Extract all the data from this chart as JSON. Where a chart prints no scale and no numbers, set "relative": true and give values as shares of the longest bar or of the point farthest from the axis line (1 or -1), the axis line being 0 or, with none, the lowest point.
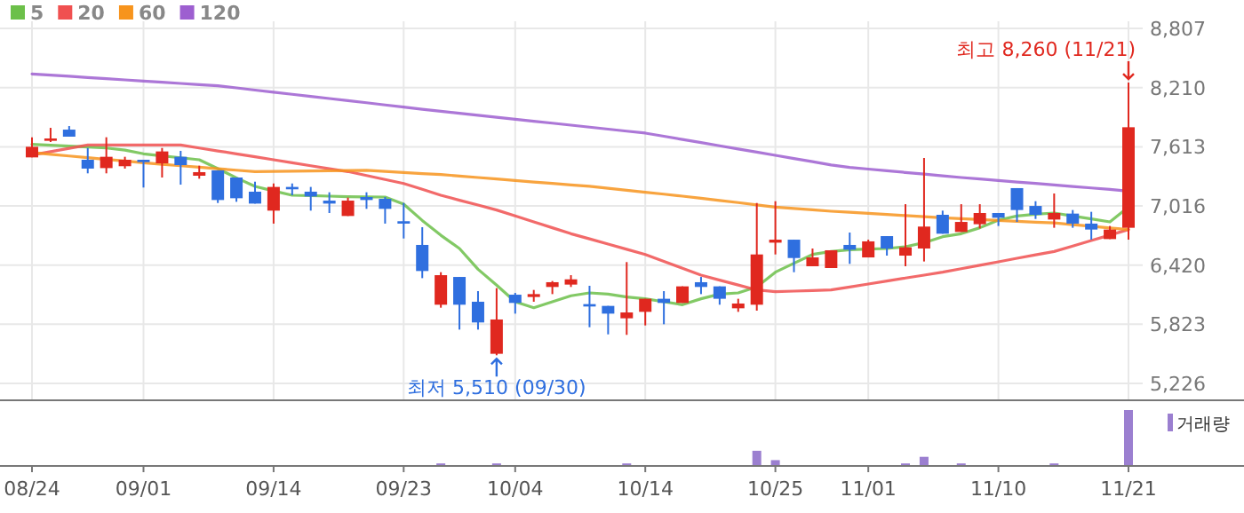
{
  "chart_data": [
    {
      "type": "candlestick",
      "categories": [
        "08/24",
        null,
        null,
        null,
        null,
        null,
        "09/01",
        null,
        null,
        null,
        null,
        null,
        null,
        "09/14",
        null,
        null,
        null,
        null,
        null,
        null,
        "09/23",
        null,
        null,
        null,
        null,
        null,
        "10/04",
        null,
        null,
        null,
        null,
        null,
        null,
        "10/14",
        null,
        null,
        null,
        null,
        null,
        null,
        "10/25",
        null,
        null,
        null,
        null,
        "11/01",
        null,
        null,
        null,
        null,
        null,
        null,
        "11/10",
        null,
        null,
        null,
        null,
        null,
        null,
        "11/21"
      ],
      "ohlc": [
        [
          7506,
          7709,
          7506,
          7613
        ],
        [
          7673,
          7804,
          7661,
          7697
        ],
        [
          7786,
          7822,
          7715,
          7715
        ],
        [
          7482,
          7601,
          7345,
          7393
        ],
        [
          7398,
          7709,
          7345,
          7512
        ],
        [
          7417,
          7512,
          7393,
          7482
        ],
        [
          7482,
          7482,
          7202,
          7458
        ],
        [
          7446,
          7601,
          7303,
          7566
        ],
        [
          7512,
          7572,
          7231,
          7428
        ],
        [
          7321,
          7422,
          7291,
          7357
        ],
        [
          7375,
          7375,
          7046,
          7076
        ],
        [
          7303,
          7303,
          7058,
          7094
        ],
        [
          7160,
          7261,
          7040,
          7040
        ],
        [
          6969,
          7243,
          6838,
          7208
        ],
        [
          7208,
          7243,
          7124,
          7184
        ],
        [
          7160,
          7208,
          6969,
          7112
        ],
        [
          7070,
          7154,
          6945,
          7040
        ],
        [
          6915,
          7100,
          6915,
          7070
        ],
        [
          7106,
          7154,
          6987,
          7076
        ],
        [
          7088,
          7106,
          6838,
          6987
        ],
        [
          6862,
          7046,
          6688,
          6838
        ],
        [
          6623,
          6802,
          6288,
          6360
        ],
        [
          6020,
          6348,
          5990,
          6318
        ],
        [
          6300,
          6300,
          5769,
          6020
        ],
        [
          6050,
          6157,
          5769,
          5841
        ],
        [
          5525,
          6187,
          5510,
          5871
        ],
        [
          6121,
          6139,
          5930,
          6038
        ],
        [
          6098,
          6169,
          6050,
          6127
        ],
        [
          6199,
          6259,
          6127,
          6247
        ],
        [
          6223,
          6318,
          6199,
          6276
        ],
        [
          6026,
          6211,
          5793,
          6002
        ],
        [
          6008,
          6008,
          5721,
          5930
        ],
        [
          5883,
          6450,
          5716,
          5942
        ],
        [
          5948,
          6080,
          5811,
          6080
        ],
        [
          6080,
          6157,
          5823,
          6038
        ],
        [
          6038,
          6205,
          6038,
          6205
        ],
        [
          6247,
          6300,
          6127,
          6199
        ],
        [
          6205,
          6205,
          6020,
          6080
        ],
        [
          5984,
          6080,
          5948,
          6032
        ],
        [
          6020,
          7046,
          5960,
          6527
        ],
        [
          6646,
          7064,
          6527,
          6676
        ],
        [
          6676,
          6676,
          6348,
          6491
        ],
        [
          6408,
          6587,
          6408,
          6497
        ],
        [
          6390,
          6569,
          6390,
          6569
        ],
        [
          6623,
          6748,
          6432,
          6575
        ],
        [
          6497,
          6676,
          6497,
          6659
        ],
        [
          6712,
          6712,
          6515,
          6587
        ],
        [
          6515,
          7034,
          6408,
          6599
        ],
        [
          6587,
          7500,
          6456,
          6808
        ],
        [
          6927,
          6969,
          6736,
          6736
        ],
        [
          6754,
          7034,
          6754,
          6855
        ],
        [
          6832,
          7034,
          6790,
          6945
        ],
        [
          6945,
          6945,
          6814,
          6897
        ],
        [
          7196,
          7196,
          6855,
          6975
        ],
        [
          7016,
          7064,
          6885,
          6927
        ],
        [
          6879,
          7142,
          6796,
          6945
        ],
        [
          6939,
          6975,
          6796,
          6838
        ],
        [
          6838,
          6957,
          6676,
          6778
        ],
        [
          6682,
          6814,
          6682,
          6778
        ],
        [
          6796,
          8260,
          6676,
          7810
        ]
      ],
      "series": [
        {
          "name": "5",
          "type": "line",
          "color": "#6cc04a",
          "values": [
            7637,
            7628,
            7619,
            7610,
            7601,
            7580,
            7542,
            7522,
            7502,
            7482,
            7393,
            7300,
            7213,
            7168,
            7124,
            7120,
            7115,
            7110,
            7108,
            7106,
            7034,
            6870,
            6720,
            6587,
            6378,
            6217,
            6050,
            5990,
            6050,
            6110,
            6139,
            6127,
            6098,
            6080,
            6050,
            6020,
            6080,
            6127,
            6139,
            6199,
            6348,
            6438,
            6527,
            6557,
            6575,
            6581,
            6587,
            6605,
            6646,
            6706,
            6736,
            6796,
            6873,
            6915,
            6933,
            6945,
            6915,
            6885,
            6855,
            7005
          ]
        },
        {
          "name": "20",
          "type": "line",
          "color": "#f05050",
          "values": [
            7530,
            7564,
            7598,
            7631,
            7631,
            7631,
            7631,
            7631,
            7631,
            7601,
            7571,
            7542,
            7512,
            7482,
            7452,
            7422,
            7392,
            7363,
            7323,
            7283,
            7243,
            7184,
            7124,
            7074,
            7025,
            6975,
            6915,
            6856,
            6796,
            6736,
            6684,
            6632,
            6579,
            6527,
            6457,
            6388,
            6318,
            6268,
            6219,
            6169,
            6151,
            6157,
            6163,
            6169,
            6199,
            6229,
            6259,
            6289,
            6318,
            6348,
            6383,
            6418,
            6453,
            6488,
            6523,
            6557,
            6612,
            6667,
            6722,
            6778
          ]
        },
        {
          "name": "60",
          "type": "line",
          "color": "#f7941d",
          "values": [
            7554,
            7537,
            7520,
            7503,
            7486,
            7469,
            7452,
            7437,
            7422,
            7407,
            7392,
            7377,
            7363,
            7365,
            7367,
            7369,
            7371,
            7373,
            7375,
            7364,
            7354,
            7343,
            7333,
            7318,
            7303,
            7288,
            7273,
            7258,
            7243,
            7229,
            7215,
            7195,
            7175,
            7155,
            7135,
            7115,
            7094,
            7072,
            7050,
            7027,
            7005,
            6991,
            6977,
            6963,
            6952,
            6941,
            6930,
            6919,
            6908,
            6897,
            6888,
            6879,
            6870,
            6861,
            6852,
            6845,
            6828,
            6811,
            6794,
            6778
          ]
        },
        {
          "name": "120",
          "type": "line",
          "color": "#9d5fd0",
          "values": [
            8348,
            8336,
            8324,
            8312,
            8300,
            8288,
            8276,
            8264,
            8252,
            8240,
            8228,
            8207,
            8185,
            8164,
            8142,
            8121,
            8100,
            8078,
            8057,
            8035,
            8014,
            7992,
            7971,
            7951,
            7931,
            7911,
            7891,
            7871,
            7851,
            7831,
            7811,
            7791,
            7771,
            7751,
            7719,
            7687,
            7655,
            7623,
            7591,
            7559,
            7527,
            7495,
            7463,
            7430,
            7405,
            7388,
            7371,
            7354,
            7337,
            7320,
            7303,
            7288,
            7273,
            7258,
            7243,
            7228,
            7213,
            7198,
            7183,
            7166
          ]
        }
      ],
      "ylim": [
        5065,
        8807
      ],
      "yticks": [
        {
          "value": 5226,
          "label": "5,226"
        },
        {
          "value": 5823,
          "label": "5,823"
        },
        {
          "value": 6420,
          "label": "6,420"
        },
        {
          "value": 7016,
          "label": "7,016"
        },
        {
          "value": 7613,
          "label": "7,613"
        },
        {
          "value": 8210,
          "label": "8,210"
        },
        {
          "value": 8807,
          "label": "8,807"
        }
      ],
      "grid": true,
      "legend": "top left",
      "tick_labels": "y",
      "annotations": [
        {
          "text": "최고 8,260 (11/21)",
          "x": "11/21",
          "y": 8260
        },
        {
          "text": "최저 5,510 (09/30)",
          "y": 5510
        }
      ]
    },
    {
      "type": "bar",
      "relative": true,
      "legend": "top right",
      "categories": [
        "08/24",
        null,
        null,
        null,
        null,
        null,
        "09/01",
        null,
        null,
        null,
        null,
        null,
        null,
        "09/14",
        null,
        null,
        null,
        null,
        null,
        null,
        "09/23",
        null,
        null,
        null,
        null,
        null,
        "10/04",
        null,
        null,
        null,
        null,
        null,
        null,
        "10/14",
        null,
        null,
        null,
        null,
        null,
        null,
        "10/25",
        null,
        null,
        null,
        null,
        "11/01",
        null,
        null,
        null,
        null,
        null,
        null,
        "11/10",
        null,
        null,
        null,
        null,
        null,
        null,
        "11/21"
      ],
      "series": [
        {
          "name": "거래량",
          "color": "#9b7fd0",
          "values": [
            null,
            null,
            null,
            null,
            null,
            null,
            null,
            null,
            null,
            null,
            null,
            null,
            null,
            null,
            null,
            null,
            null,
            null,
            null,
            null,
            null,
            null,
            0.03,
            null,
            null,
            0.03,
            null,
            null,
            null,
            null,
            null,
            null,
            0.03,
            null,
            null,
            null,
            null,
            null,
            null,
            0.26,
            0.09,
            null,
            null,
            null,
            null,
            null,
            null,
            0.03,
            0.15,
            null,
            0.03,
            null,
            null,
            null,
            null,
            0.03,
            null,
            null,
            null,
            1
          ]
        }
      ],
      "tick_labels": "x"
    }
  ]
}
